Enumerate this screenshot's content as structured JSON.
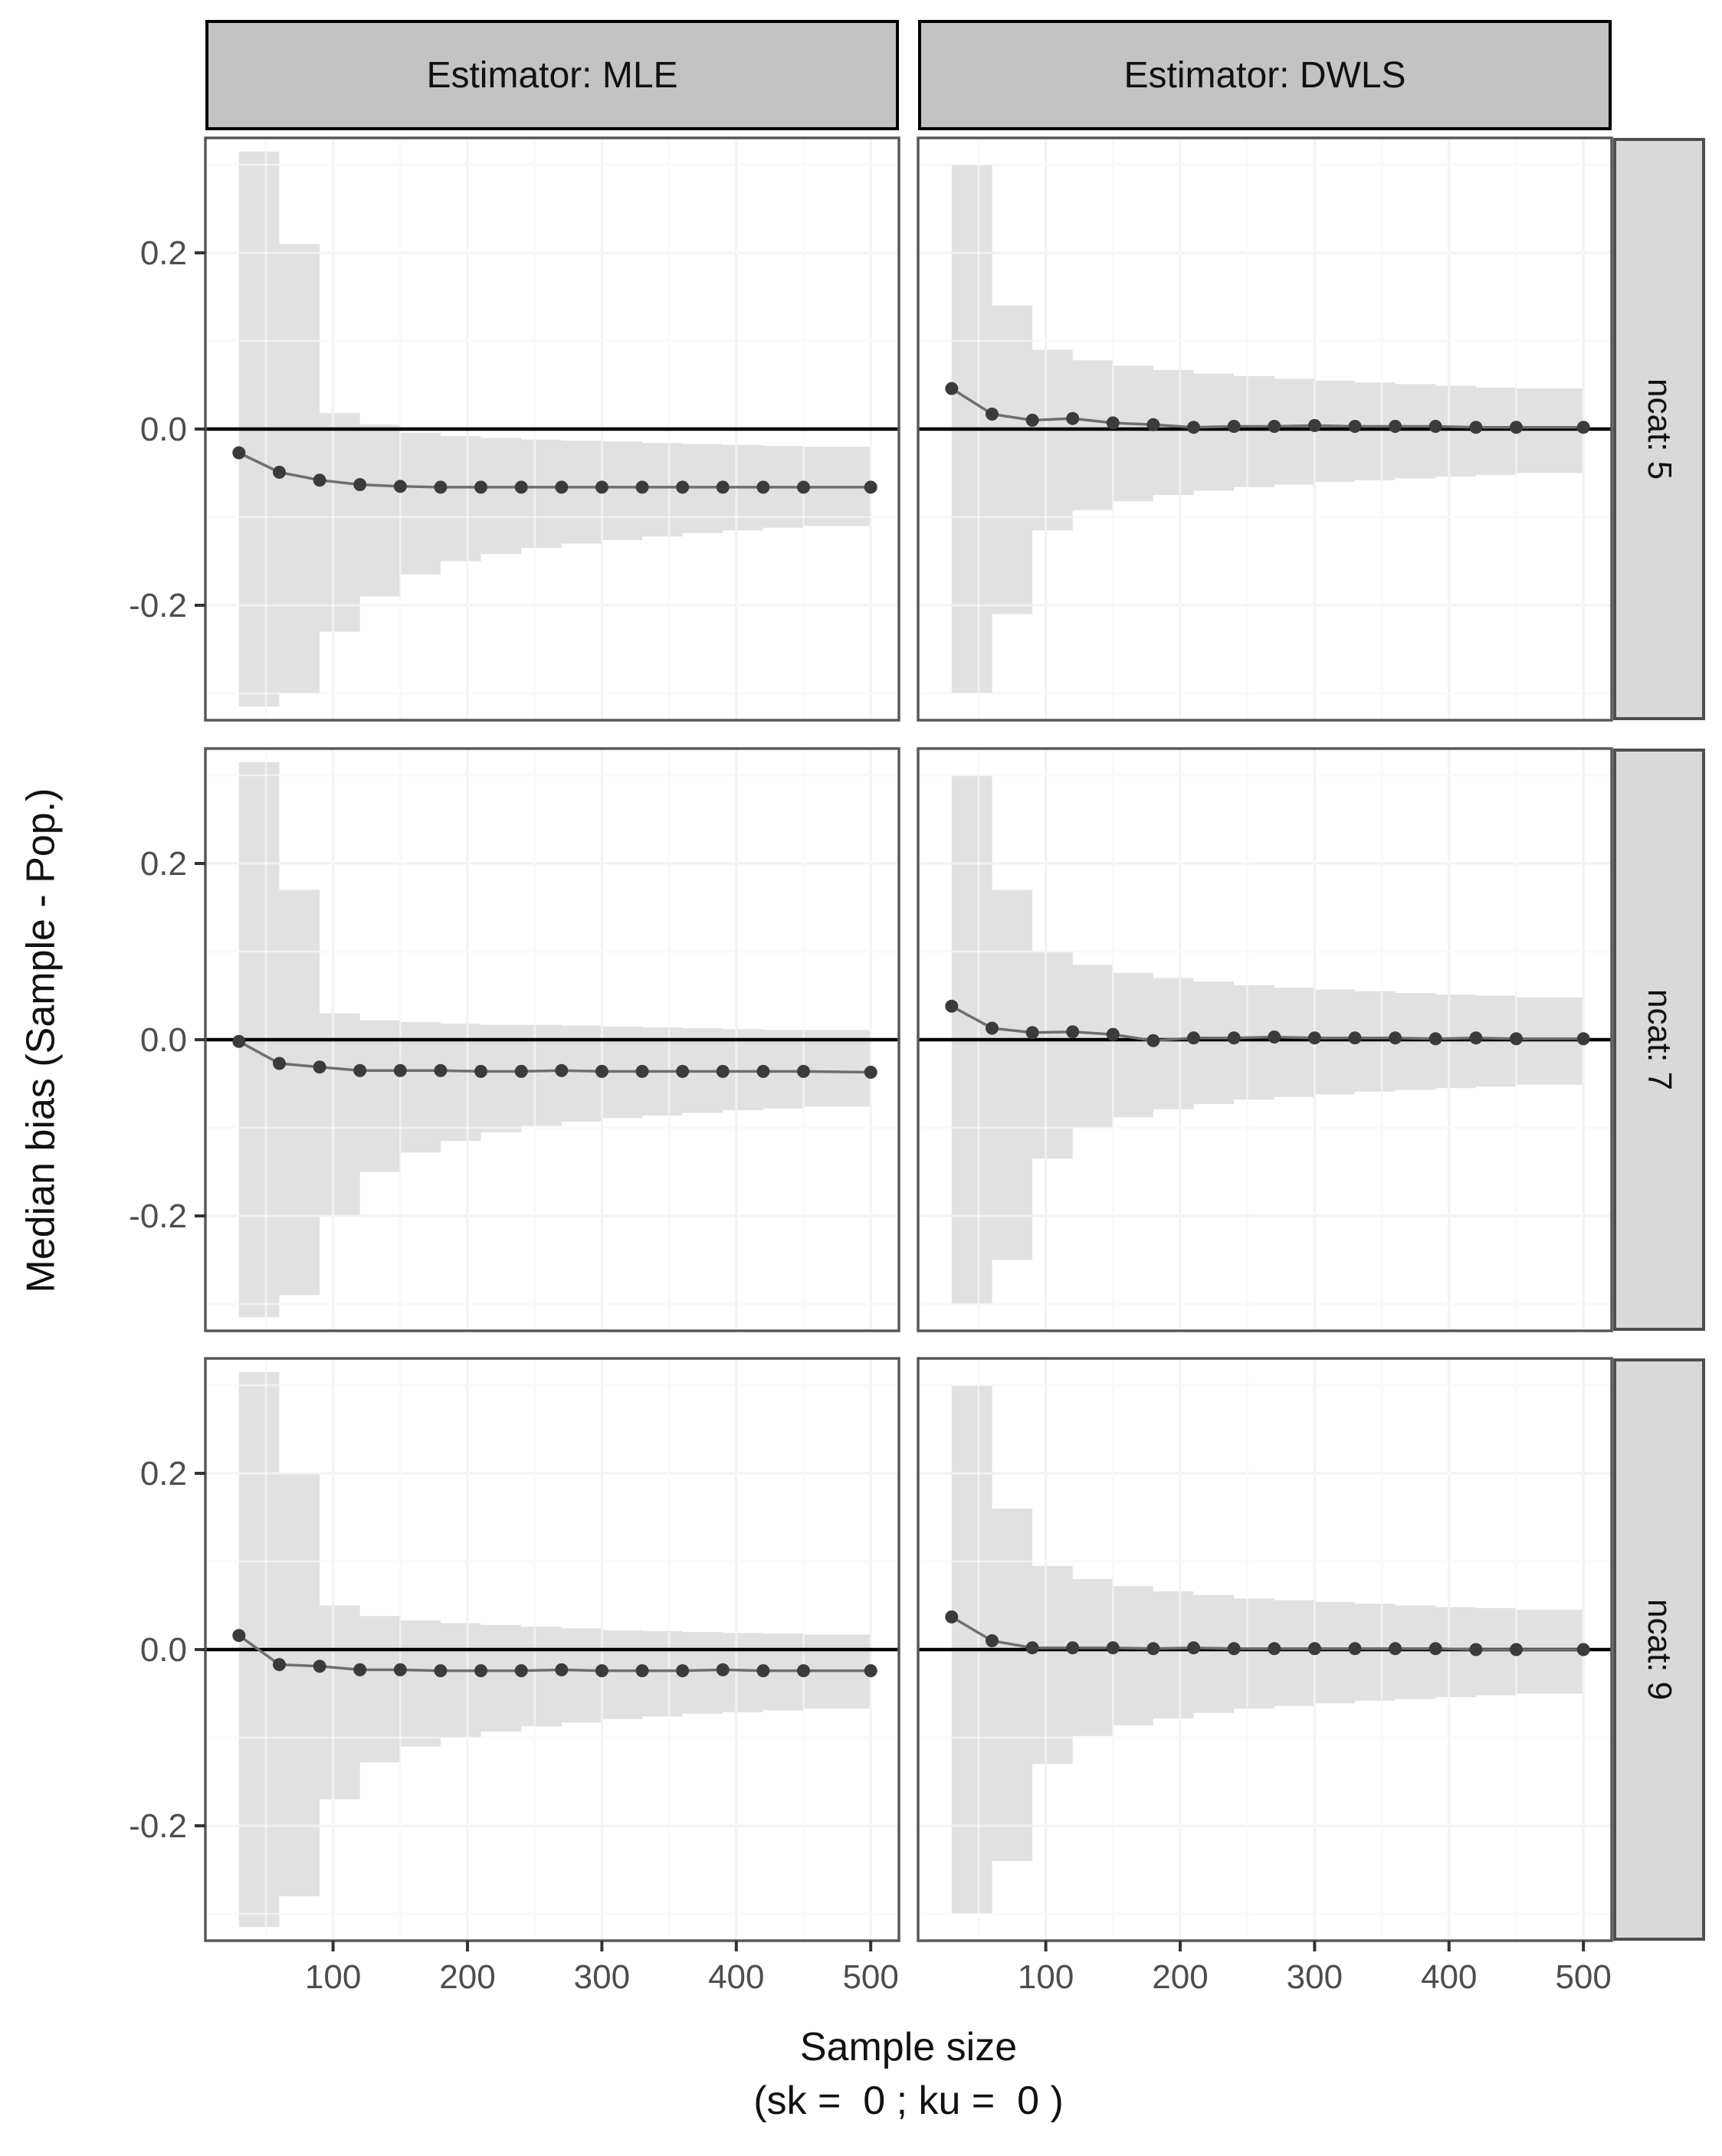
{
  "chart_data": {
    "type": "line",
    "title": "",
    "xlabel": "Sample size",
    "x_sublabel": "(sk =  0 ; ku =  0 )",
    "ylabel": "Median bias (Sample - Pop.)",
    "facets": {
      "cols": [
        "Estimator: MLE",
        "Estimator: DWLS"
      ],
      "rows": [
        "ncat: 5",
        "ncat: 7",
        "ncat: 9"
      ]
    },
    "x": [
      30,
      60,
      90,
      120,
      150,
      180,
      210,
      240,
      270,
      300,
      330,
      360,
      390,
      420,
      450,
      500
    ],
    "x_ticks": [
      {
        "v": 100,
        "label": "100"
      },
      {
        "v": 200,
        "label": "200"
      },
      {
        "v": 300,
        "label": "300"
      },
      {
        "v": 400,
        "label": "400"
      },
      {
        "v": 500,
        "label": "500"
      }
    ],
    "x_minor": [
      50,
      150,
      250,
      350,
      450
    ],
    "y_ticks": [
      {
        "v": 0.2,
        "label": "0.2"
      },
      {
        "v": 0.0,
        "label": "0.0"
      },
      {
        "v": -0.2,
        "label": "-0.2"
      }
    ],
    "y_minor": [
      0.3,
      0.1,
      -0.1,
      -0.3
    ],
    "ylim": [
      -0.3304,
      0.3304
    ],
    "xlim": [
      5,
      521
    ],
    "zero_reference": 0,
    "legend": "none",
    "grid": "on",
    "panels": [
      {
        "col": "Estimator: MLE",
        "row": "ncat: 5",
        "median": [
          -0.027,
          -0.049,
          -0.058,
          -0.063,
          -0.065,
          -0.066,
          -0.066,
          -0.066,
          -0.066,
          -0.066,
          -0.066,
          -0.066,
          -0.066,
          -0.066,
          -0.066,
          -0.066
        ],
        "upper": [
          0.315,
          0.21,
          0.018,
          0.005,
          -0.004,
          -0.008,
          -0.01,
          -0.012,
          -0.013,
          -0.014,
          -0.016,
          -0.017,
          -0.018,
          -0.019,
          -0.02,
          -0.022
        ],
        "lower": [
          -0.315,
          -0.3,
          -0.23,
          -0.19,
          -0.165,
          -0.15,
          -0.142,
          -0.135,
          -0.13,
          -0.126,
          -0.122,
          -0.118,
          -0.115,
          -0.112,
          -0.11,
          -0.105
        ]
      },
      {
        "col": "Estimator: DWLS",
        "row": "ncat: 5",
        "median": [
          0.046,
          0.017,
          0.01,
          0.012,
          0.007,
          0.005,
          0.002,
          0.003,
          0.003,
          0.004,
          0.003,
          0.003,
          0.003,
          0.002,
          0.002,
          0.002
        ],
        "upper": [
          0.3,
          0.14,
          0.09,
          0.078,
          0.072,
          0.067,
          0.063,
          0.06,
          0.057,
          0.055,
          0.053,
          0.051,
          0.049,
          0.047,
          0.046,
          0.044
        ],
        "lower": [
          -0.3,
          -0.21,
          -0.115,
          -0.092,
          -0.082,
          -0.075,
          -0.07,
          -0.066,
          -0.063,
          -0.06,
          -0.058,
          -0.056,
          -0.054,
          -0.052,
          -0.05,
          -0.048
        ]
      },
      {
        "col": "Estimator: MLE",
        "row": "ncat: 7",
        "median": [
          -0.002,
          -0.027,
          -0.031,
          -0.035,
          -0.035,
          -0.035,
          -0.036,
          -0.036,
          -0.035,
          -0.036,
          -0.036,
          -0.036,
          -0.036,
          -0.036,
          -0.036,
          -0.037
        ],
        "upper": [
          0.315,
          0.17,
          0.03,
          0.022,
          0.02,
          0.018,
          0.017,
          0.017,
          0.016,
          0.015,
          0.014,
          0.013,
          0.012,
          0.011,
          0.011,
          0.01
        ],
        "lower": [
          -0.315,
          -0.29,
          -0.2,
          -0.15,
          -0.128,
          -0.115,
          -0.105,
          -0.098,
          -0.093,
          -0.089,
          -0.086,
          -0.083,
          -0.08,
          -0.078,
          -0.076,
          -0.073
        ]
      },
      {
        "col": "Estimator: DWLS",
        "row": "ncat: 7",
        "median": [
          0.038,
          0.013,
          0.008,
          0.009,
          0.006,
          -0.001,
          0.002,
          0.002,
          0.003,
          0.002,
          0.002,
          0.002,
          0.001,
          0.002,
          0.001,
          0.001
        ],
        "upper": [
          0.3,
          0.17,
          0.1,
          0.085,
          0.076,
          0.07,
          0.066,
          0.062,
          0.059,
          0.057,
          0.055,
          0.053,
          0.051,
          0.05,
          0.048,
          0.046
        ],
        "lower": [
          -0.3,
          -0.25,
          -0.135,
          -0.1,
          -0.088,
          -0.079,
          -0.073,
          -0.068,
          -0.065,
          -0.062,
          -0.059,
          -0.057,
          -0.055,
          -0.053,
          -0.051,
          -0.049
        ]
      },
      {
        "col": "Estimator: MLE",
        "row": "ncat: 9",
        "median": [
          0.016,
          -0.017,
          -0.019,
          -0.023,
          -0.023,
          -0.024,
          -0.024,
          -0.024,
          -0.023,
          -0.024,
          -0.024,
          -0.024,
          -0.023,
          -0.024,
          -0.024,
          -0.024
        ],
        "upper": [
          0.315,
          0.2,
          0.05,
          0.038,
          0.033,
          0.03,
          0.028,
          0.026,
          0.024,
          0.022,
          0.021,
          0.02,
          0.019,
          0.018,
          0.017,
          0.016
        ],
        "lower": [
          -0.315,
          -0.28,
          -0.17,
          -0.128,
          -0.11,
          -0.1,
          -0.093,
          -0.087,
          -0.083,
          -0.079,
          -0.076,
          -0.073,
          -0.071,
          -0.069,
          -0.067,
          -0.064
        ]
      },
      {
        "col": "Estimator: DWLS",
        "row": "ncat: 9",
        "median": [
          0.037,
          0.01,
          0.002,
          0.002,
          0.002,
          0.001,
          0.002,
          0.001,
          0.001,
          0.001,
          0.001,
          0.001,
          0.001,
          0.0,
          0.0,
          0.0
        ],
        "upper": [
          0.3,
          0.16,
          0.095,
          0.08,
          0.072,
          0.066,
          0.062,
          0.058,
          0.056,
          0.054,
          0.052,
          0.05,
          0.048,
          0.047,
          0.045,
          0.043
        ],
        "lower": [
          -0.3,
          -0.24,
          -0.13,
          -0.098,
          -0.086,
          -0.078,
          -0.072,
          -0.067,
          -0.064,
          -0.061,
          -0.058,
          -0.056,
          -0.054,
          -0.052,
          -0.05,
          -0.048
        ]
      }
    ],
    "colors": {
      "ribbon": "#e1e1e1",
      "line": "#6e6e6e",
      "point": "#3b3b3b",
      "zero_line": "#000000",
      "grid_major": "#e7e7e7",
      "grid_minor": "#f3f3f3",
      "grid_over_ribbon": "rgba(255,255,255,0.5)",
      "panel_border": "#585858",
      "strip_fill": "#c3c3c3",
      "strip_right_fill": "#d9d9d9",
      "tick_label": "#4d4d4d",
      "tick_mark": "#333333"
    }
  }
}
